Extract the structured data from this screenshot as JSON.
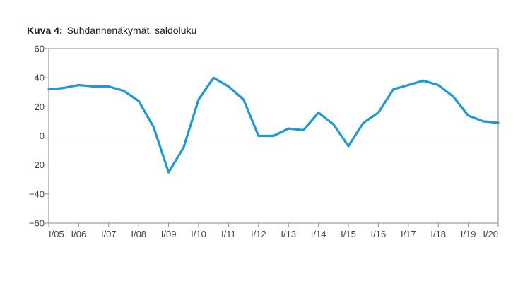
{
  "figure": {
    "label": "Kuva 4:",
    "title": "Suhdannenäkymät, saldoluku"
  },
  "chart_data": {
    "type": "line",
    "title": "Suhdannenäkymät, saldoluku",
    "xlabel": "",
    "ylabel": "",
    "ylim": [
      -60,
      60
    ],
    "yticks": [
      60,
      40,
      20,
      0,
      -20,
      -40,
      -60
    ],
    "ytick_labels": [
      "60",
      "40",
      "20",
      "0",
      "−20",
      "−40",
      "−60"
    ],
    "xlim": [
      2005,
      2020
    ],
    "xtick_labels": [
      "I/05",
      "I/06",
      "I/07",
      "I/08",
      "I/09",
      "I/10",
      "I/11",
      "I/12",
      "I/13",
      "I/14",
      "I/15",
      "I/16",
      "I/17",
      "I/18",
      "I/19",
      "I/20"
    ],
    "grid": false,
    "zero_line": true,
    "line_color": "#1a9ad6",
    "series": [
      {
        "x": [
          2005.0,
          2005.5,
          2006.0,
          2006.5,
          2007.0,
          2007.5,
          2008.0,
          2008.5,
          2009.0,
          2009.5,
          2010.0,
          2010.5,
          2011.0,
          2011.5,
          2012.0,
          2012.5,
          2013.0,
          2013.5,
          2014.0,
          2014.5,
          2015.0,
          2015.5,
          2016.0,
          2016.5,
          2017.0,
          2017.5,
          2018.0,
          2018.5,
          2019.0,
          2019.5,
          2020.0
        ],
        "values": [
          32,
          33,
          35,
          34,
          34,
          31,
          24,
          6,
          -25,
          -8,
          25,
          40,
          34,
          25,
          0,
          0,
          5,
          4,
          16,
          8,
          -7,
          9,
          16,
          32,
          35,
          38,
          35,
          27,
          14,
          10,
          9
        ]
      }
    ]
  }
}
